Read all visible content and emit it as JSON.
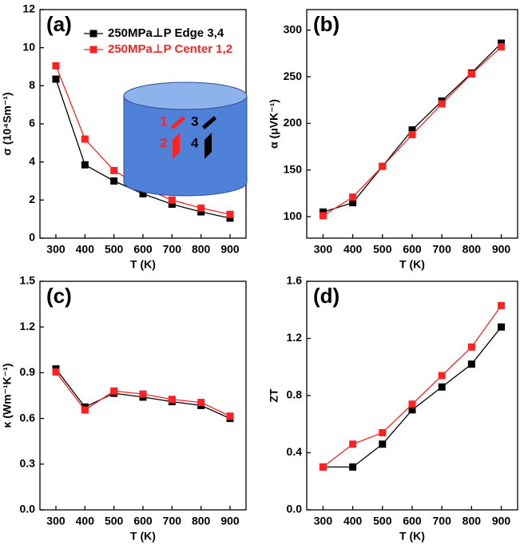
{
  "chart_data": [
    {
      "type": "line",
      "panel": "(a)",
      "xlabel": "T (K)",
      "ylabel": "σ (10⁴Sm⁻¹)",
      "x": [
        300,
        400,
        500,
        600,
        700,
        800,
        900
      ],
      "xlim": [
        245,
        955
      ],
      "xticks": [
        300,
        400,
        500,
        600,
        700,
        800,
        900
      ],
      "ylim": [
        0,
        12
      ],
      "yticks": [
        0,
        2,
        4,
        6,
        8,
        10,
        12
      ],
      "legend": "upper left",
      "series": [
        {
          "name": "250MPa⊥P Edge 3,4",
          "color": "#000000",
          "values": [
            8.35,
            3.85,
            3.0,
            2.33,
            1.78,
            1.38,
            1.05
          ]
        },
        {
          "name": "250MPa⊥P Center 1,2",
          "color": "#ff2222",
          "values": [
            9.05,
            5.2,
            3.55,
            2.65,
            2.0,
            1.58,
            1.25
          ]
        }
      ],
      "inset_labels": [
        "1",
        "2",
        "3",
        "4"
      ]
    },
    {
      "type": "line",
      "panel": "(b)",
      "xlabel": "T (K)",
      "ylabel": "α (μVK⁻¹)",
      "x": [
        300,
        400,
        500,
        600,
        700,
        800,
        900
      ],
      "xlim": [
        245,
        955
      ],
      "xticks": [
        300,
        400,
        500,
        600,
        700,
        800,
        900
      ],
      "ylim": [
        77,
        322
      ],
      "yticks": [
        100,
        150,
        200,
        250,
        300
      ],
      "series": [
        {
          "color": "#000000",
          "values": [
            105,
            115,
            154,
            193,
            224,
            254,
            286
          ]
        },
        {
          "color": "#ff2222",
          "values": [
            101,
            121,
            154,
            188,
            221,
            253,
            282
          ]
        }
      ]
    },
    {
      "type": "line",
      "panel": "(c)",
      "xlabel": "T (K)",
      "ylabel": "κ (Wm⁻¹K⁻¹)",
      "x": [
        300,
        400,
        500,
        600,
        700,
        800,
        900
      ],
      "xlim": [
        245,
        955
      ],
      "xticks": [
        300,
        400,
        500,
        600,
        700,
        800,
        900
      ],
      "ylim": [
        0,
        1.5
      ],
      "yticks": [
        {
          "value": 0,
          "label": "0.0"
        },
        0.3,
        0.6,
        0.9,
        1.2,
        1.5
      ],
      "series": [
        {
          "color": "#000000",
          "values": [
            0.925,
            0.675,
            0.765,
            0.74,
            0.71,
            0.685,
            0.6
          ]
        },
        {
          "color": "#ff2222",
          "values": [
            0.905,
            0.655,
            0.78,
            0.76,
            0.725,
            0.705,
            0.615
          ]
        }
      ]
    },
    {
      "type": "line",
      "panel": "(d)",
      "xlabel": "T (K)",
      "ylabel": "ZT",
      "x": [
        300,
        400,
        500,
        600,
        700,
        800,
        900
      ],
      "xlim": [
        245,
        955
      ],
      "xticks": [
        300,
        400,
        500,
        600,
        700,
        800,
        900
      ],
      "ylim": [
        0,
        1.6
      ],
      "yticks": [
        {
          "value": 0,
          "label": "0.0"
        },
        0.4,
        0.8,
        1.2,
        1.6
      ],
      "series": [
        {
          "color": "#000000",
          "values": [
            0.3,
            0.3,
            0.46,
            0.7,
            0.86,
            1.02,
            1.28
          ]
        },
        {
          "color": "#ff2222",
          "values": [
            0.3,
            0.46,
            0.54,
            0.74,
            0.94,
            1.14,
            1.43
          ]
        }
      ]
    }
  ]
}
